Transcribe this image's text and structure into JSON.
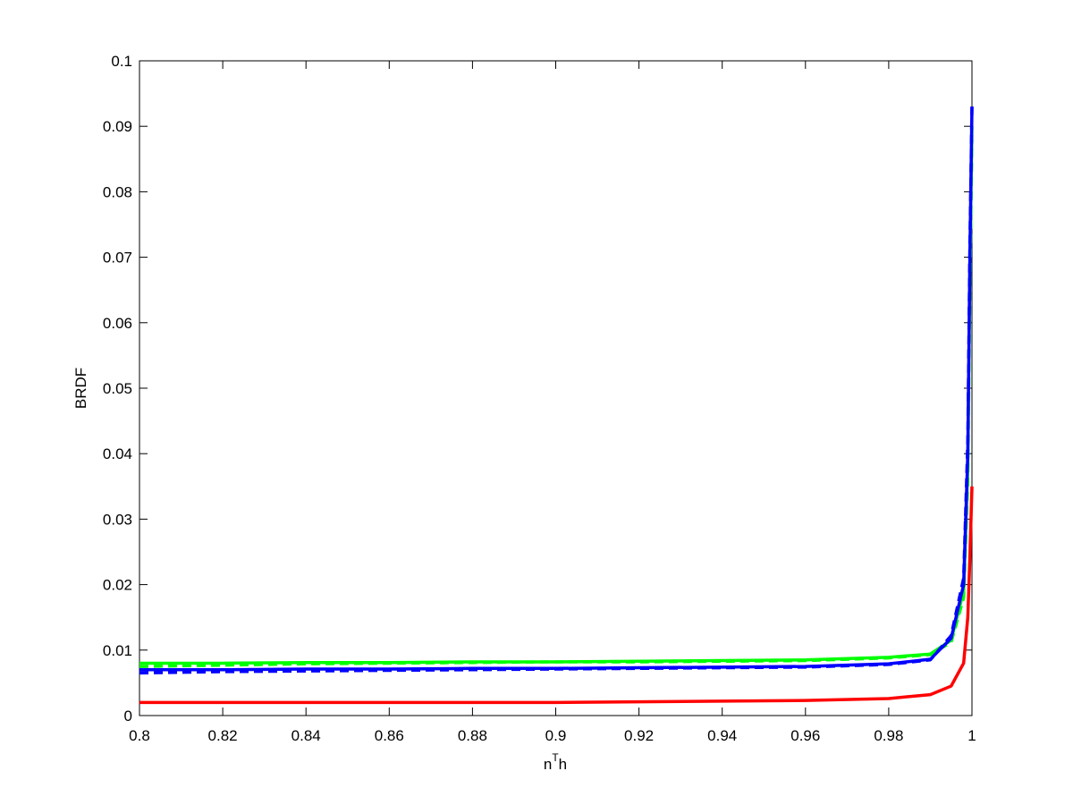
{
  "chart_data": {
    "type": "line",
    "xlabel": [
      "n",
      "T",
      "h"
    ],
    "ylabel": "BRDF",
    "x": [
      0.8,
      0.82,
      0.84,
      0.86,
      0.88,
      0.9,
      0.92,
      0.94,
      0.96,
      0.98,
      0.99,
      0.995,
      0.998,
      0.999,
      0.9995,
      1
    ],
    "series": [
      {
        "color": "#00ff00",
        "dash": false,
        "values": [
          0.008,
          0.008,
          0.0081,
          0.0081,
          0.0082,
          0.0082,
          0.0083,
          0.0084,
          0.0085,
          0.0089,
          0.0094,
          0.0115,
          0.019,
          0.038,
          0.068,
          0.09
        ]
      },
      {
        "color": "#00ff00",
        "dash": true,
        "values": [
          0.0075,
          0.0077,
          0.0079,
          0.008,
          0.0081,
          0.0082,
          0.0082,
          0.0083,
          0.0084,
          0.0088,
          0.0093,
          0.0112,
          0.018,
          0.036,
          0.065,
          0.088
        ]
      },
      {
        "color": "#0000ff",
        "dash": false,
        "values": [
          0.007,
          0.007,
          0.0071,
          0.0071,
          0.0072,
          0.0072,
          0.0073,
          0.0074,
          0.0075,
          0.0079,
          0.0086,
          0.0118,
          0.02,
          0.04,
          0.07,
          0.093
        ]
      },
      {
        "color": "#0000ff",
        "dash": true,
        "values": [
          0.0065,
          0.0067,
          0.0068,
          0.0069,
          0.007,
          0.0071,
          0.0072,
          0.0073,
          0.0074,
          0.0078,
          0.0085,
          0.0122,
          0.021,
          0.042,
          0.072,
          0.093
        ]
      },
      {
        "color": "#ff0000",
        "dash": false,
        "values": [
          0.002,
          0.002,
          0.002,
          0.002,
          0.002,
          0.002,
          0.0021,
          0.0022,
          0.0023,
          0.0026,
          0.0032,
          0.0045,
          0.008,
          0.015,
          0.024,
          0.035
        ]
      }
    ],
    "xlim": [
      0.8,
      1
    ],
    "xticks": [
      0.8,
      0.82,
      0.84,
      0.86,
      0.88,
      0.9,
      0.92,
      0.94,
      0.96,
      0.98,
      1
    ],
    "ylim": [
      0,
      0.1
    ],
    "yticks": [
      0,
      0.01,
      0.02,
      0.03,
      0.04,
      0.05,
      0.06,
      0.07,
      0.08,
      0.09,
      0.1
    ],
    "grid": false
  }
}
